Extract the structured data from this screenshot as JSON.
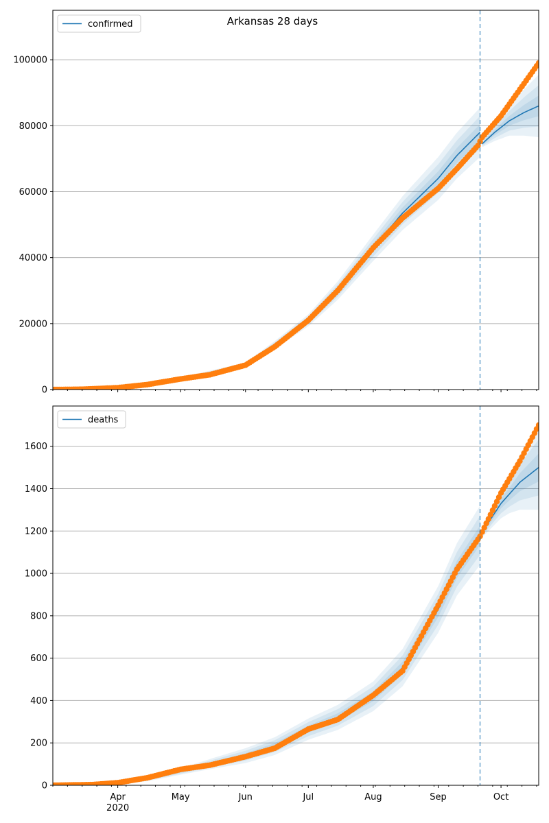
{
  "figure": {
    "title": "Arkansas 28 days",
    "forecast_date": "2020-09-21",
    "colors": {
      "model": "#1f77b4",
      "observed": "#ff7f0e",
      "band": "#1f77b4",
      "vline": "#1f77b4",
      "grid": "#b0b0b0"
    }
  },
  "chart_data": [
    {
      "type": "line",
      "name": "confirmed-panel",
      "legend_label": "confirmed",
      "legend_position": "upper-left",
      "x_range": [
        "2020-03-01",
        "2020-10-19"
      ],
      "ylim": [
        0,
        115000
      ],
      "yticks": [
        0,
        20000,
        40000,
        60000,
        80000,
        100000
      ],
      "grid": "y",
      "model_knots": [
        [
          "2020-03-01",
          0
        ],
        [
          "2020-04-01",
          600
        ],
        [
          "2020-05-01",
          3200
        ],
        [
          "2020-06-01",
          7500
        ],
        [
          "2020-06-15",
          13500
        ],
        [
          "2020-07-01",
          21000
        ],
        [
          "2020-07-15",
          30000
        ],
        [
          "2020-08-01",
          43000
        ],
        [
          "2020-08-15",
          53500
        ],
        [
          "2020-09-01",
          64000
        ],
        [
          "2020-09-10",
          71000
        ],
        [
          "2020-09-21",
          78000
        ],
        [
          "2020-09-22",
          74500
        ],
        [
          "2020-09-28",
          78000
        ],
        [
          "2020-10-05",
          81500
        ],
        [
          "2020-10-12",
          84000
        ],
        [
          "2020-10-19",
          86000
        ]
      ],
      "band_widths": [
        [
          "2020-03-01",
          0
        ],
        [
          "2020-06-01",
          700
        ],
        [
          "2020-07-01",
          1800
        ],
        [
          "2020-08-01",
          4000
        ],
        [
          "2020-09-01",
          6500
        ],
        [
          "2020-09-21",
          7500
        ],
        [
          "2020-09-22",
          1000
        ],
        [
          "2020-10-05",
          4500
        ],
        [
          "2020-10-19",
          9500
        ]
      ],
      "observed_knots": [
        [
          "2020-03-01",
          0
        ],
        [
          "2020-03-15",
          80
        ],
        [
          "2020-04-01",
          550
        ],
        [
          "2020-04-15",
          1500
        ],
        [
          "2020-05-01",
          3200
        ],
        [
          "2020-05-15",
          4500
        ],
        [
          "2020-06-01",
          7400
        ],
        [
          "2020-06-15",
          13000
        ],
        [
          "2020-07-01",
          21000
        ],
        [
          "2020-07-15",
          30000
        ],
        [
          "2020-08-01",
          43000
        ],
        [
          "2020-08-15",
          52000
        ],
        [
          "2020-09-01",
          61000
        ],
        [
          "2020-09-10",
          67000
        ],
        [
          "2020-09-20",
          74000
        ],
        [
          "2020-09-22",
          76500
        ],
        [
          "2020-10-01",
          83000
        ],
        [
          "2020-10-10",
          91000
        ],
        [
          "2020-10-19",
          99000
        ]
      ]
    },
    {
      "type": "line",
      "name": "deaths-panel",
      "legend_label": "deaths",
      "legend_position": "upper-left",
      "x_range": [
        "2020-03-01",
        "2020-10-19"
      ],
      "ylim": [
        0,
        1790
      ],
      "yticks": [
        0,
        200,
        400,
        600,
        800,
        1000,
        1200,
        1400,
        1600
      ],
      "grid": "y",
      "xticks": [
        "Apr",
        "May",
        "Jun",
        "Jul",
        "Aug",
        "Sep",
        "Oct"
      ],
      "xtick_year": "2020",
      "model_knots": [
        [
          "2020-03-01",
          0
        ],
        [
          "2020-03-25",
          5
        ],
        [
          "2020-04-15",
          30
        ],
        [
          "2020-05-01",
          65
        ],
        [
          "2020-05-15",
          100
        ],
        [
          "2020-06-01",
          140
        ],
        [
          "2020-06-15",
          185
        ],
        [
          "2020-07-01",
          265
        ],
        [
          "2020-07-15",
          320
        ],
        [
          "2020-08-01",
          420
        ],
        [
          "2020-08-15",
          555
        ],
        [
          "2020-09-01",
          830
        ],
        [
          "2020-09-10",
          1020
        ],
        [
          "2020-09-21",
          1180
        ],
        [
          "2020-10-01",
          1330
        ],
        [
          "2020-10-10",
          1430
        ],
        [
          "2020-10-19",
          1500
        ]
      ],
      "band_widths": [
        [
          "2020-03-01",
          0
        ],
        [
          "2020-05-01",
          15
        ],
        [
          "2020-06-01",
          35
        ],
        [
          "2020-07-01",
          50
        ],
        [
          "2020-08-01",
          70
        ],
        [
          "2020-09-01",
          110
        ],
        [
          "2020-09-21",
          140
        ],
        [
          "2020-09-22",
          25
        ],
        [
          "2020-10-05",
          90
        ],
        [
          "2020-10-19",
          200
        ]
      ],
      "observed_knots": [
        [
          "2020-03-01",
          0
        ],
        [
          "2020-03-20",
          3
        ],
        [
          "2020-04-01",
          12
        ],
        [
          "2020-04-15",
          35
        ],
        [
          "2020-05-01",
          75
        ],
        [
          "2020-05-15",
          95
        ],
        [
          "2020-06-01",
          135
        ],
        [
          "2020-06-15",
          175
        ],
        [
          "2020-07-01",
          265
        ],
        [
          "2020-07-15",
          310
        ],
        [
          "2020-08-01",
          425
        ],
        [
          "2020-08-15",
          540
        ],
        [
          "2020-09-01",
          850
        ],
        [
          "2020-09-10",
          1020
        ],
        [
          "2020-09-21",
          1175
        ],
        [
          "2020-10-01",
          1380
        ],
        [
          "2020-10-10",
          1530
        ],
        [
          "2020-10-19",
          1700
        ]
      ]
    }
  ]
}
